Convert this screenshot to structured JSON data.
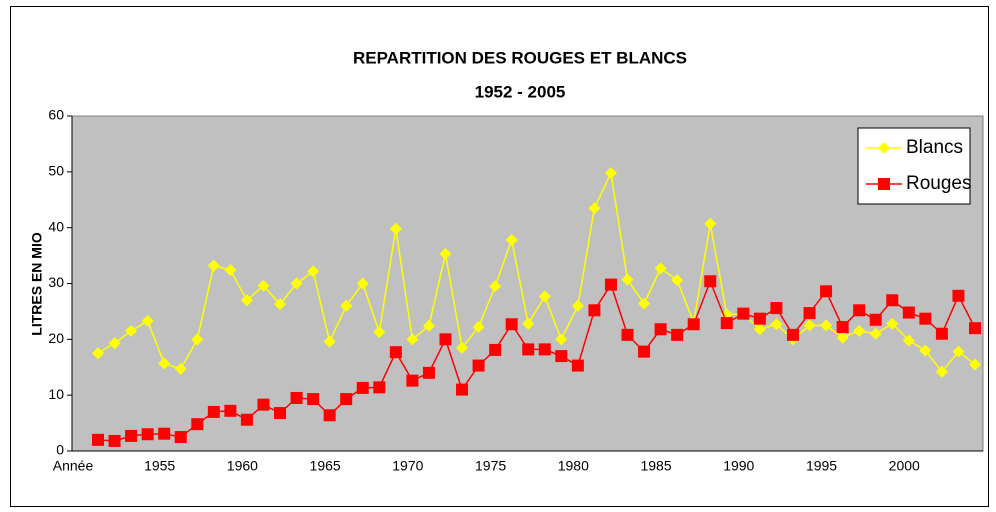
{
  "chart_data": {
    "type": "line",
    "title": "REPARTITION DES ROUGES ET BLANCS",
    "subtitle": "1952 - 2005",
    "ylabel": "LITRES EN MIO",
    "categories": [
      "Année",
      null,
      null,
      "1955",
      null,
      null,
      null,
      null,
      "1960",
      null,
      null,
      null,
      null,
      "1965",
      null,
      null,
      null,
      null,
      "1970",
      null,
      null,
      null,
      null,
      "1975",
      null,
      null,
      null,
      null,
      "1980",
      null,
      null,
      null,
      null,
      "1985",
      null,
      null,
      null,
      null,
      "1990",
      null,
      null,
      null,
      null,
      "1995",
      null,
      null,
      null,
      null,
      "2000",
      null,
      null,
      null,
      null,
      null
    ],
    "series": [
      {
        "name": "Blancs",
        "color": "#ffff00",
        "marker": "diamond",
        "values": [
          17.5,
          19.3,
          21.5,
          23.3,
          15.7,
          14.7,
          20,
          33.2,
          32.4,
          27,
          29.6,
          26.3,
          30,
          32.2,
          19.6,
          26,
          30,
          21.3,
          39.8,
          20,
          22.4,
          35.3,
          18.5,
          22.2,
          29.5,
          37.8,
          22.8,
          27.7,
          20,
          26,
          43.5,
          49.8,
          30.7,
          26.4,
          32.7,
          30.6,
          23,
          40.7,
          24.5,
          24.5,
          21.8,
          22.7,
          20,
          22.5,
          22.5,
          20.3,
          21.5,
          21,
          22.8,
          19.8,
          18,
          14.2,
          17.8,
          15.5
        ]
      },
      {
        "name": "Rouges",
        "color": "#ff0000",
        "marker": "square",
        "values": [
          2,
          1.8,
          2.7,
          3,
          3.1,
          2.5,
          4.8,
          7,
          7.2,
          5.6,
          8.3,
          6.8,
          9.5,
          9.3,
          6.4,
          9.3,
          11.3,
          11.4,
          17.7,
          12.6,
          14,
          20,
          11,
          15.3,
          18.1,
          22.7,
          18.2,
          18.2,
          17,
          15.3,
          25.2,
          29.8,
          20.8,
          17.8,
          21.8,
          20.8,
          22.7,
          30.4,
          22.9,
          24.6,
          23.7,
          25.6,
          20.8,
          24.7,
          28.6,
          22.2,
          25.2,
          23.5,
          27,
          24.8,
          23.7,
          21,
          27.8,
          22
        ]
      }
    ],
    "ylim": [
      0,
      60
    ],
    "yticks": [
      0,
      10,
      20,
      30,
      40,
      50,
      60
    ],
    "legend": "top-right",
    "plot_background": "#c0c0c0"
  }
}
